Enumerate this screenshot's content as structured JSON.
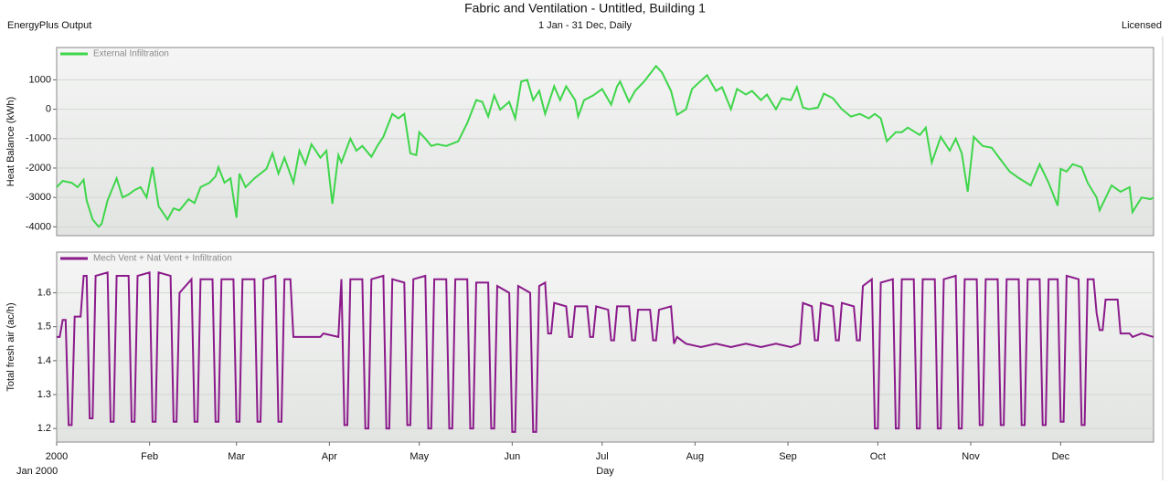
{
  "header": {
    "title": "Fabric and Ventilation - Untitled, Building 1",
    "source": "EnergyPlus Output",
    "period": "1 Jan - 31 Dec, Daily",
    "license": "Licensed"
  },
  "chart_data": [
    {
      "type": "line",
      "ylabel": "Heat Balance (kWh)",
      "x": [
        0,
        2,
        5,
        7,
        9,
        10,
        12,
        14,
        15,
        17,
        20,
        22,
        24,
        26,
        28,
        30,
        32,
        34,
        37,
        39,
        41,
        44,
        46,
        48,
        51,
        53,
        54,
        56,
        58,
        60,
        61,
        63,
        66,
        70,
        72,
        74,
        76,
        79,
        81,
        83,
        85,
        88,
        90,
        92,
        94,
        95,
        98,
        100,
        102,
        105,
        107,
        109,
        112,
        114,
        116,
        118,
        120,
        121,
        123,
        125,
        127,
        130,
        134,
        137,
        140,
        142,
        144,
        146,
        148,
        151,
        153,
        155,
        157,
        159,
        161,
        163,
        166,
        168,
        170,
        173,
        174,
        176,
        179,
        182,
        185,
        187,
        188,
        191,
        193,
        196,
        200,
        202,
        205,
        207,
        210,
        212,
        214,
        217,
        220,
        222,
        225,
        227,
        230,
        232,
        235,
        237,
        240,
        242,
        245,
        247,
        249,
        251,
        254,
        256,
        259,
        262,
        265,
        268,
        271,
        273,
        275,
        277,
        280,
        282,
        284,
        288,
        290,
        292,
        295,
        298,
        300,
        302,
        304,
        306,
        309,
        312,
        315,
        318,
        321,
        325,
        328,
        331,
        334,
        335,
        337,
        339,
        342,
        344,
        347,
        348,
        352,
        355,
        358,
        359,
        362,
        365,
        366
      ],
      "series": [
        {
          "name": "External Infiltration",
          "color": "#3ed64a",
          "values": [
            -2650,
            -2440,
            -2500,
            -2650,
            -2400,
            -3100,
            -3750,
            -4000,
            -3900,
            -3100,
            -2350,
            -3000,
            -2900,
            -2750,
            -2650,
            -3000,
            -1970,
            -3300,
            -3750,
            -3370,
            -3440,
            -3060,
            -3190,
            -2650,
            -2500,
            -2280,
            -1970,
            -2500,
            -2350,
            -3690,
            -2190,
            -2650,
            -2350,
            -2030,
            -1500,
            -2190,
            -1650,
            -2500,
            -1410,
            -1870,
            -1190,
            -1650,
            -1410,
            -3220,
            -1560,
            -1810,
            -1000,
            -1410,
            -1250,
            -1620,
            -1250,
            -940,
            -160,
            -310,
            -160,
            -1500,
            -1560,
            -780,
            -1000,
            -1250,
            -1190,
            -1250,
            -1090,
            -470,
            310,
            250,
            -250,
            470,
            -16,
            250,
            -310,
            940,
            1000,
            310,
            625,
            -160,
            780,
            310,
            780,
            310,
            -250,
            310,
            470,
            690,
            155,
            780,
            940,
            250,
            625,
            940,
            1470,
            1250,
            625,
            -190,
            0,
            690,
            880,
            1160,
            625,
            750,
            0,
            690,
            500,
            625,
            310,
            500,
            0,
            375,
            310,
            750,
            60,
            0,
            60,
            530,
            375,
            0,
            -250,
            -160,
            -310,
            -160,
            -310,
            -1090,
            -780,
            -780,
            -625,
            -875,
            -625,
            -1810,
            -940,
            -1410,
            -1000,
            -1500,
            -2810,
            -940,
            -1250,
            -1310,
            -1720,
            -2120,
            -2340,
            -2590,
            -1870,
            -2500,
            -3280,
            -2030,
            -2120,
            -1870,
            -1970,
            -2500,
            -3000,
            -3440,
            -2590,
            -2810,
            -2650,
            -3500,
            -3000,
            -3060,
            -3000
          ]
        }
      ],
      "xlim": [
        0,
        366
      ],
      "ylim": [
        -4300,
        2100
      ],
      "yticks": [
        1000,
        0,
        -1000,
        -2000,
        -3000,
        -4000
      ],
      "grid": true
    },
    {
      "type": "line",
      "ylabel": "Total fresh air (ac/h)",
      "xlabel": "Day",
      "x_start_label": "Jan 2000",
      "x": [
        0,
        1,
        2,
        3,
        4,
        5,
        6,
        8,
        9,
        10,
        11,
        12,
        13,
        17,
        18,
        19,
        20,
        24,
        25,
        26,
        27,
        31,
        32,
        33,
        34,
        38,
        39,
        40,
        41,
        45,
        46,
        47,
        48,
        52,
        53,
        54,
        55,
        59,
        60,
        61,
        62,
        66,
        67,
        68,
        69,
        73,
        74,
        75,
        76,
        78,
        79,
        85,
        88,
        89,
        94,
        95,
        96,
        97,
        98,
        102,
        103,
        104,
        105,
        109,
        110,
        111,
        112,
        116,
        117,
        118,
        119,
        123,
        124,
        125,
        126,
        130,
        131,
        132,
        133,
        137,
        138,
        139,
        140,
        144,
        145,
        146,
        147,
        151,
        152,
        153,
        154,
        158,
        159,
        160,
        161,
        163,
        164,
        165,
        166,
        170,
        171,
        172,
        173,
        177,
        178,
        179,
        180,
        184,
        185,
        186,
        187,
        191,
        192,
        193,
        194,
        198,
        199,
        200,
        201,
        205,
        206,
        207,
        210,
        215,
        220,
        225,
        230,
        235,
        240,
        245,
        248,
        249,
        252,
        253,
        254,
        255,
        259,
        260,
        261,
        262,
        266,
        267,
        268,
        269,
        272,
        273,
        274,
        275,
        279,
        280,
        281,
        282,
        286,
        287,
        288,
        289,
        293,
        294,
        295,
        296,
        300,
        301,
        302,
        303,
        307,
        308,
        309,
        310,
        314,
        315,
        316,
        317,
        321,
        322,
        323,
        324,
        328,
        329,
        330,
        331,
        334,
        335,
        336,
        337,
        341,
        342,
        343,
        344,
        346,
        347,
        348,
        349,
        350,
        354,
        355,
        358,
        359,
        362,
        366
      ],
      "series": [
        {
          "name": "Mech Vent + Nat Vent + Infiltration",
          "color": "#8b1a8b",
          "values": [
            1.47,
            1.47,
            1.52,
            1.52,
            1.21,
            1.21,
            1.53,
            1.53,
            1.65,
            1.65,
            1.23,
            1.23,
            1.65,
            1.66,
            1.22,
            1.22,
            1.65,
            1.65,
            1.22,
            1.22,
            1.65,
            1.66,
            1.22,
            1.22,
            1.66,
            1.65,
            1.22,
            1.22,
            1.6,
            1.64,
            1.22,
            1.22,
            1.64,
            1.64,
            1.22,
            1.22,
            1.64,
            1.64,
            1.22,
            1.22,
            1.64,
            1.64,
            1.22,
            1.22,
            1.64,
            1.65,
            1.22,
            1.22,
            1.64,
            1.64,
            1.47,
            1.47,
            1.47,
            1.48,
            1.47,
            1.64,
            1.21,
            1.21,
            1.64,
            1.64,
            1.2,
            1.2,
            1.64,
            1.65,
            1.2,
            1.2,
            1.64,
            1.63,
            1.21,
            1.21,
            1.64,
            1.65,
            1.2,
            1.2,
            1.64,
            1.64,
            1.2,
            1.2,
            1.64,
            1.64,
            1.2,
            1.2,
            1.63,
            1.63,
            1.2,
            1.2,
            1.62,
            1.6,
            1.19,
            1.19,
            1.62,
            1.6,
            1.19,
            1.19,
            1.62,
            1.63,
            1.48,
            1.48,
            1.57,
            1.56,
            1.47,
            1.47,
            1.56,
            1.56,
            1.47,
            1.47,
            1.56,
            1.55,
            1.46,
            1.46,
            1.56,
            1.56,
            1.46,
            1.46,
            1.55,
            1.55,
            1.46,
            1.46,
            1.55,
            1.56,
            1.45,
            1.47,
            1.45,
            1.44,
            1.45,
            1.44,
            1.45,
            1.44,
            1.45,
            1.44,
            1.45,
            1.57,
            1.56,
            1.46,
            1.46,
            1.57,
            1.56,
            1.46,
            1.46,
            1.57,
            1.56,
            1.46,
            1.46,
            1.62,
            1.64,
            1.2,
            1.2,
            1.63,
            1.64,
            1.2,
            1.2,
            1.64,
            1.64,
            1.2,
            1.2,
            1.64,
            1.64,
            1.2,
            1.2,
            1.64,
            1.65,
            1.2,
            1.2,
            1.64,
            1.64,
            1.21,
            1.21,
            1.64,
            1.64,
            1.21,
            1.21,
            1.64,
            1.64,
            1.21,
            1.21,
            1.64,
            1.64,
            1.21,
            1.21,
            1.64,
            1.64,
            1.22,
            1.22,
            1.65,
            1.64,
            1.21,
            1.21,
            1.64,
            1.64,
            1.54,
            1.49,
            1.49,
            1.58,
            1.58,
            1.48,
            1.48,
            1.47,
            1.48,
            1.47
          ]
        }
      ],
      "xlim": [
        0,
        366
      ],
      "ylim": [
        1.16,
        1.72
      ],
      "yticks": [
        1.2,
        1.3,
        1.4,
        1.5,
        1.6
      ],
      "xticks": [
        {
          "value": 0,
          "label": "2000"
        },
        {
          "value": 31,
          "label": "Feb"
        },
        {
          "value": 60,
          "label": "Mar"
        },
        {
          "value": 91,
          "label": "Apr"
        },
        {
          "value": 121,
          "label": "May"
        },
        {
          "value": 152,
          "label": "Jun"
        },
        {
          "value": 182,
          "label": "Jul"
        },
        {
          "value": 213,
          "label": "Aug"
        },
        {
          "value": 244,
          "label": "Sep"
        },
        {
          "value": 274,
          "label": "Oct"
        },
        {
          "value": 305,
          "label": "Nov"
        },
        {
          "value": 335,
          "label": "Dec"
        }
      ],
      "grid": true
    }
  ]
}
